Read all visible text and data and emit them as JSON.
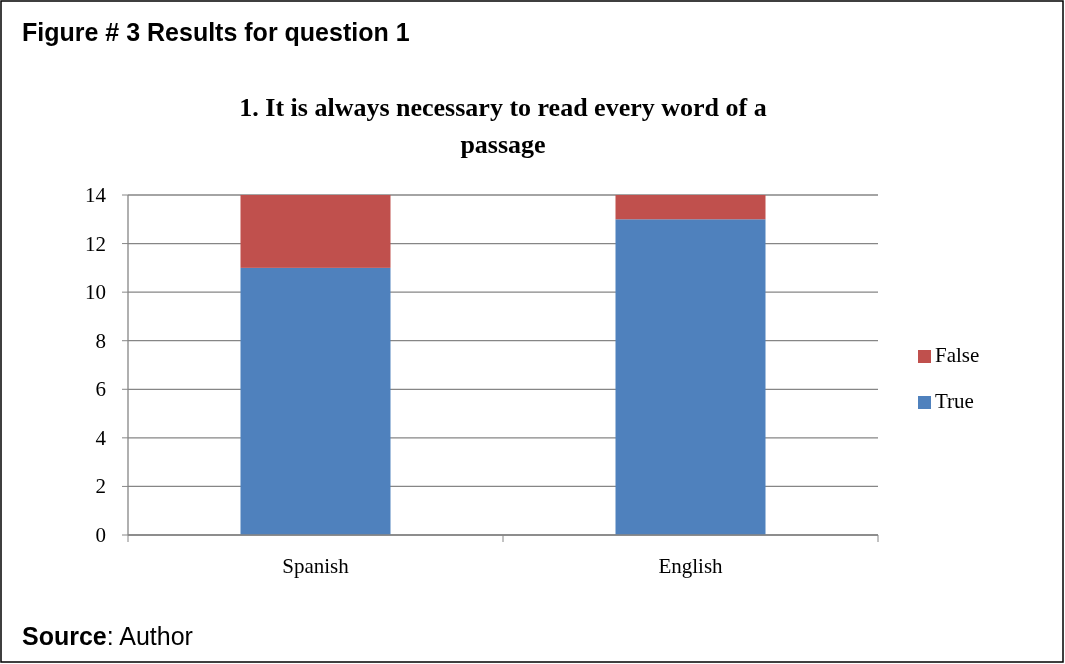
{
  "chart_data": {
    "type": "bar",
    "subtitle": "Figure # 3 Results for question 1",
    "title": "1.  It is always necessary to read every word of a passage",
    "categories": [
      "Spanish",
      "English"
    ],
    "series": [
      {
        "name": "True",
        "color": "#4f81bd",
        "values": [
          11,
          13
        ]
      },
      {
        "name": "False",
        "color": "#c0504d",
        "values": [
          3,
          1
        ]
      }
    ],
    "stacked": true,
    "ylim": [
      0,
      14
    ],
    "yticks": [
      0,
      2,
      4,
      6,
      8,
      10,
      12,
      14
    ],
    "grid": "y",
    "legend": "right",
    "annotations": [
      "Source: Author"
    ]
  }
}
